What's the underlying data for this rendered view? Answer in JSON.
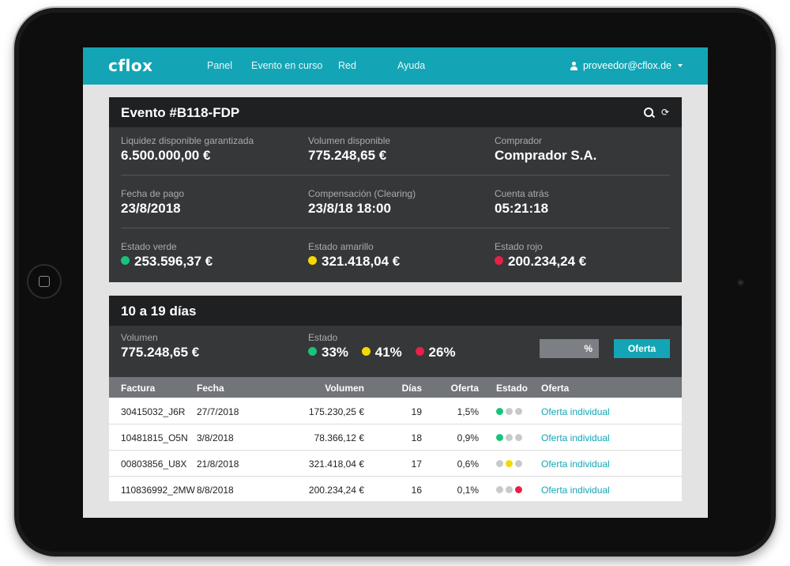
{
  "colors": {
    "accent": "#13a5b5",
    "green": "#18c37c",
    "yellow": "#f6d900",
    "red": "#ea1f48",
    "grey_dot": "#c8c9cb"
  },
  "nav": {
    "logo": "cflox",
    "items": [
      "Panel",
      "Evento en curso",
      "Red",
      "Ayuda"
    ],
    "user": "proveedor@cflox.de"
  },
  "event": {
    "title": "Evento #B118-FDP",
    "stats": [
      {
        "label": "Liquidez disponible garantizada",
        "value": "6.500.000,00 €"
      },
      {
        "label": "Volumen disponible",
        "value": "775.248,65 €"
      },
      {
        "label": "Comprador",
        "value": "Comprador S.A."
      },
      {
        "label": "Fecha de pago",
        "value": "23/8/2018"
      },
      {
        "label": "Compensación (Clearing)",
        "value": "23/8/18 18:00"
      },
      {
        "label": "Cuenta atrás",
        "value": "05:21:18"
      },
      {
        "label": "Estado verde",
        "value": "253.596,37 €"
      },
      {
        "label": "Estado amarillo",
        "value": "321.418,04 €"
      },
      {
        "label": "Estado rojo",
        "value": "200.234,24 €"
      }
    ]
  },
  "range": {
    "title": "10 a 19 días",
    "volume_label": "Volumen",
    "volume_value": "775.248,65 €",
    "status_label": "Estado",
    "status": {
      "green": "33%",
      "yellow": "41%",
      "red": "26%"
    },
    "pct_placeholder": "%",
    "offer_button": "Oferta"
  },
  "table": {
    "headers": [
      "Factura",
      "Fecha",
      "Volumen",
      "Días",
      "Oferta",
      "Estado",
      "Oferta"
    ],
    "rows": [
      {
        "factura": "30415032_J6R",
        "fecha": "27/7/2018",
        "volumen": "175.230,25 €",
        "dias": "19",
        "oferta": "1,5%",
        "estado": "green",
        "link": "Oferta individual"
      },
      {
        "factura": "10481815_O5N",
        "fecha": "3/8/2018",
        "volumen": "78.366,12 €",
        "dias": "18",
        "oferta": "0,9%",
        "estado": "green",
        "link": "Oferta individual"
      },
      {
        "factura": "00803856_U8X",
        "fecha": "21/8/2018",
        "volumen": "321.418,04 €",
        "dias": "17",
        "oferta": "0,6%",
        "estado": "yellow",
        "link": "Oferta individual"
      },
      {
        "factura": "110836992_2MW",
        "fecha": "8/8/2018",
        "volumen": "200.234,24 €",
        "dias": "16",
        "oferta": "0,1%",
        "estado": "red",
        "link": "Oferta individual"
      }
    ]
  }
}
